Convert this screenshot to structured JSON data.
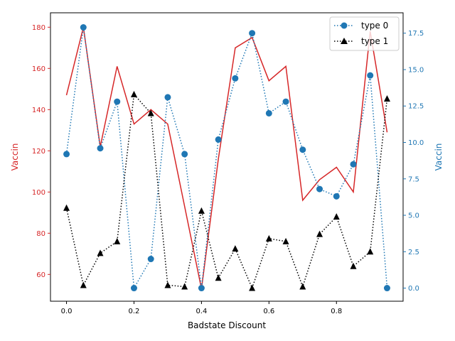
{
  "chart_data": {
    "type": "line",
    "x": [
      0.0,
      0.05,
      0.1,
      0.15,
      0.2,
      0.25,
      0.3,
      0.35,
      0.4,
      0.45,
      0.5,
      0.55,
      0.6,
      0.65,
      0.7,
      0.75,
      0.8,
      0.85,
      0.9,
      0.95
    ],
    "xlabel": "Badstate Discount",
    "xlim": [
      -0.0475,
      0.9975
    ],
    "xticks": [
      0.0,
      0.2,
      0.4,
      0.6,
      0.8
    ],
    "xtick_labels": [
      "0.0",
      "0.2",
      "0.4",
      "0.6",
      "0.8"
    ],
    "left_axis": {
      "label": "Vaccin",
      "color": "#d62728",
      "ylim": [
        47,
        187
      ],
      "ticks": [
        60,
        80,
        100,
        120,
        140,
        160,
        180
      ],
      "tick_labels": [
        "60",
        "80",
        "100",
        "120",
        "140",
        "160",
        "180"
      ],
      "series": [
        {
          "style": "solid",
          "color": "#d62728",
          "values": [
            147,
            180,
            122,
            161,
            133,
            140,
            133,
            93,
            53,
            116,
            170,
            175,
            154,
            161,
            96,
            106,
            112,
            100,
            178,
            129
          ]
        }
      ]
    },
    "right_axis": {
      "label": "Vaccin",
      "color": "#1f77b4",
      "ylim": [
        -0.9,
        18.9
      ],
      "ticks": [
        0.0,
        2.5,
        5.0,
        7.5,
        10.0,
        12.5,
        15.0,
        17.5
      ],
      "tick_labels": [
        "0.0",
        "2.5",
        "5.0",
        "7.5",
        "10.0",
        "12.5",
        "15.0",
        "17.5"
      ],
      "series": [
        {
          "name": "type 0",
          "style": "dotted",
          "marker": "circle",
          "color": "#1f77b4",
          "values": [
            9.2,
            17.9,
            9.6,
            12.8,
            0.0,
            2.0,
            13.1,
            9.2,
            0.0,
            10.2,
            14.4,
            17.5,
            12.0,
            12.8,
            9.5,
            6.8,
            6.3,
            8.5,
            14.6,
            0.0
          ]
        },
        {
          "name": "type 1",
          "style": "dotted",
          "marker": "triangle",
          "color": "#000000",
          "values": [
            5.5,
            0.2,
            2.4,
            3.2,
            13.3,
            12.0,
            0.2,
            0.1,
            5.3,
            0.7,
            2.7,
            0.0,
            3.4,
            3.2,
            0.1,
            3.7,
            4.9,
            1.5,
            2.5,
            13.0
          ]
        }
      ]
    },
    "legend": {
      "placement": "top-right"
    }
  }
}
